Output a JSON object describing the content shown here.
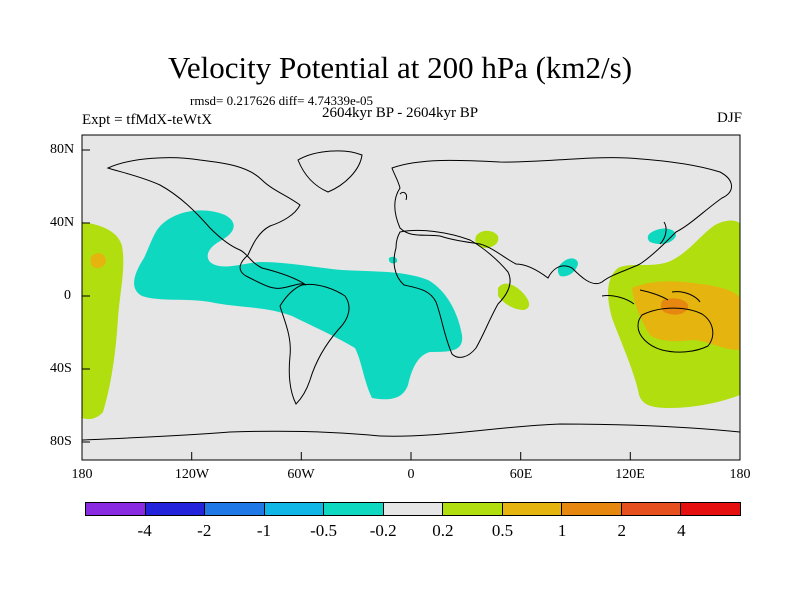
{
  "title": "Velocity Potential at 200 hPa (km2/s)",
  "stats": "rmsd= 0.217626 diff= 4.74339e-05",
  "period": "2604kyr BP - 2604kyr BP",
  "experiment": "Expt = tfMdX-teWtX",
  "season": "DJF",
  "axes": {
    "lat_labels": [
      "80N",
      "40N",
      "0",
      "40S",
      "80S"
    ],
    "lon_labels": [
      "180",
      "120W",
      "60W",
      "0",
      "60E",
      "120E",
      "180"
    ]
  },
  "colorbar": {
    "colors": [
      "#8a2be2",
      "#2323dc",
      "#1e78e6",
      "#10b6e6",
      "#0fd8c0",
      "#e6e6e6",
      "#b0de0f",
      "#e6b40f",
      "#e6870f",
      "#e6501e",
      "#e60f0f"
    ],
    "labels": [
      "-4",
      "-2",
      "-1",
      "-0.5",
      "-0.2",
      "0.2",
      "0.5",
      "1",
      "2",
      "4"
    ]
  },
  "colors": {
    "background": "#e6e6e6",
    "negative_02": "#0fd8c0",
    "positive_02": "#b0de0f",
    "positive_05": "#e6b40f",
    "positive_1": "#e6870f"
  }
}
